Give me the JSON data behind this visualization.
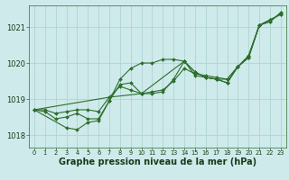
{
  "background_color": "#ceeaea",
  "grid_color": "#b0d4d4",
  "line_color": "#2d6e2d",
  "marker_color": "#2d6e2d",
  "xlabel": "Graphe pression niveau de la mer (hPa)",
  "xlabel_fontsize": 7.0,
  "ylabel_ticks": [
    1018,
    1019,
    1020,
    1021
  ],
  "xlim": [
    -0.5,
    23.5
  ],
  "ylim": [
    1017.65,
    1021.6
  ],
  "series": [
    {
      "x": [
        0,
        1,
        2,
        3,
        4,
        5,
        6,
        7,
        8,
        9,
        10,
        11,
        12,
        13,
        14,
        15,
        16,
        17,
        18,
        19,
        20,
        21,
        22,
        23
      ],
      "y": [
        1018.7,
        1018.7,
        1018.6,
        1018.65,
        1018.7,
        1018.7,
        1018.65,
        1019.05,
        1019.35,
        1019.25,
        1019.15,
        1019.2,
        1019.25,
        1019.5,
        1019.85,
        1019.7,
        1019.65,
        1019.6,
        1019.55,
        1019.9,
        1020.2,
        1021.05,
        1021.2,
        1021.35
      ]
    },
    {
      "x": [
        0,
        1,
        2,
        3,
        4,
        5,
        6,
        7,
        8,
        9,
        10,
        11,
        12,
        13,
        14,
        15,
        16,
        17,
        18,
        19,
        20,
        21,
        22,
        23
      ],
      "y": [
        1018.7,
        1018.65,
        1018.45,
        1018.5,
        1018.6,
        1018.45,
        1018.45,
        1018.95,
        1019.55,
        1019.85,
        1020.0,
        1020.0,
        1020.1,
        1020.1,
        1020.05,
        1019.65,
        1019.6,
        1019.55,
        1019.55,
        1019.9,
        1020.2,
        1021.05,
        1021.2,
        1021.35
      ]
    },
    {
      "x": [
        0,
        3,
        4,
        5,
        6,
        7,
        8,
        9,
        10,
        11,
        12,
        13,
        14,
        15,
        16,
        17,
        18,
        19,
        20,
        21,
        22,
        23
      ],
      "y": [
        1018.7,
        1018.2,
        1018.15,
        1018.35,
        1018.4,
        1018.95,
        1019.4,
        1019.45,
        1019.15,
        1019.15,
        1019.2,
        1019.55,
        1020.05,
        1019.75,
        1019.6,
        1019.55,
        1019.45,
        1019.9,
        1020.15,
        1021.05,
        1021.15,
        1021.4
      ]
    },
    {
      "x": [
        0,
        7,
        10,
        14,
        15,
        16,
        17,
        18,
        19,
        20,
        21,
        22,
        23
      ],
      "y": [
        1018.7,
        1019.05,
        1019.15,
        1020.05,
        1019.75,
        1019.6,
        1019.55,
        1019.45,
        1019.9,
        1020.15,
        1021.05,
        1021.15,
        1021.4
      ]
    }
  ]
}
